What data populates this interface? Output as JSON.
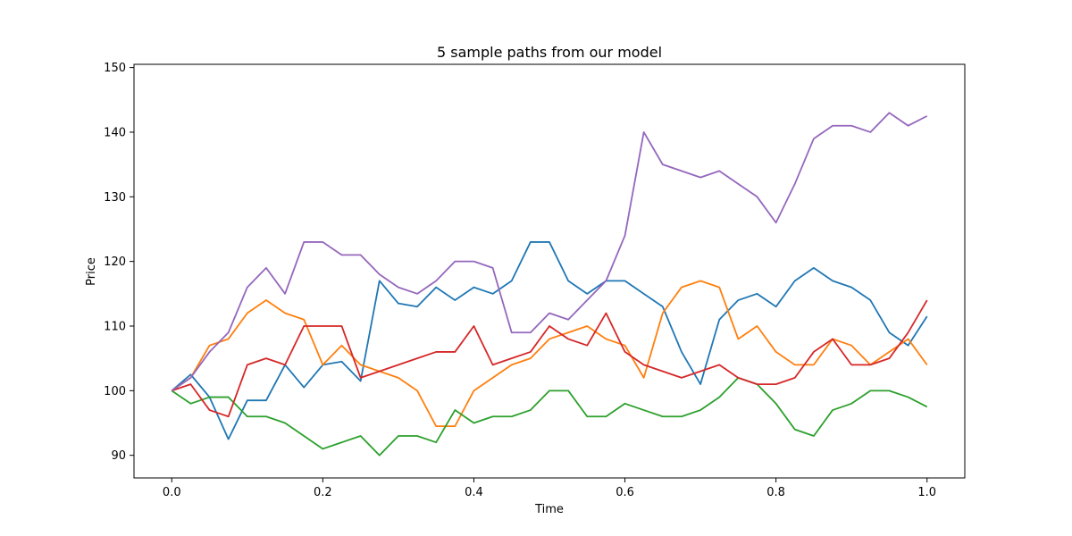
{
  "chart_data": {
    "type": "line",
    "title": "5 sample paths from our model",
    "xlabel": "Time",
    "ylabel": "Price",
    "xlim": [
      -0.05,
      1.05
    ],
    "ylim": [
      86.5,
      150.5
    ],
    "xticks": [
      0.0,
      0.2,
      0.4,
      0.6,
      0.8,
      1.0
    ],
    "xtick_labels": [
      "0.0",
      "0.2",
      "0.4",
      "0.6",
      "0.8",
      "1.0"
    ],
    "yticks": [
      90,
      100,
      110,
      120,
      130,
      140,
      150
    ],
    "ytick_labels": [
      "90",
      "100",
      "110",
      "120",
      "130",
      "140",
      "150"
    ],
    "grid": false,
    "x": [
      0.0,
      0.025,
      0.05,
      0.075,
      0.1,
      0.125,
      0.15,
      0.175,
      0.2,
      0.225,
      0.25,
      0.275,
      0.3,
      0.325,
      0.35,
      0.375,
      0.4,
      0.425,
      0.45,
      0.475,
      0.5,
      0.525,
      0.55,
      0.575,
      0.6,
      0.625,
      0.65,
      0.675,
      0.7,
      0.725,
      0.75,
      0.775,
      0.8,
      0.825,
      0.85,
      0.875,
      0.9,
      0.925,
      0.95,
      0.975,
      1.0
    ],
    "series": [
      {
        "color": "#1f77b4",
        "values": [
          100,
          102.5,
          99,
          92.5,
          98.5,
          98.5,
          104,
          100.5,
          104,
          104.5,
          101.5,
          117,
          113.5,
          113,
          116,
          114,
          116,
          115,
          117,
          123,
          123,
          117,
          115,
          117,
          117,
          115,
          113,
          106,
          101,
          111,
          114,
          115,
          113,
          117,
          119,
          117,
          116,
          114,
          109,
          107,
          111.5
        ]
      },
      {
        "color": "#ff7f0e",
        "values": [
          100,
          102,
          107,
          108,
          112,
          114,
          112,
          111,
          104,
          107,
          104,
          103,
          102,
          100,
          94.5,
          94.5,
          100,
          102,
          104,
          105,
          108,
          109,
          110,
          108,
          107,
          102,
          112,
          116,
          117,
          116,
          108,
          110,
          106,
          104,
          104,
          108,
          107,
          104,
          106,
          108,
          104
        ]
      },
      {
        "color": "#2ca02c",
        "values": [
          100,
          98,
          99,
          99,
          96,
          96,
          95,
          93,
          91,
          92,
          93,
          90,
          93,
          93,
          92,
          97,
          95,
          96,
          96,
          97,
          100,
          100,
          96,
          96,
          98,
          97,
          96,
          96,
          97,
          99,
          102,
          101,
          98,
          94,
          93,
          97,
          98,
          100,
          100,
          99,
          97.5
        ]
      },
      {
        "color": "#d62728",
        "values": [
          100,
          101,
          97,
          96,
          104,
          105,
          104,
          110,
          110,
          110,
          102,
          103,
          104,
          105,
          106,
          106,
          110,
          104,
          105,
          106,
          110,
          108,
          107,
          112,
          106,
          104,
          103,
          102,
          103,
          104,
          102,
          101,
          101,
          102,
          106,
          108,
          104,
          104,
          105,
          109,
          114
        ]
      },
      {
        "color": "#9467bd",
        "values": [
          100,
          102,
          106,
          109,
          116,
          119,
          115,
          123,
          123,
          121,
          121,
          118,
          116,
          115,
          117,
          120,
          120,
          119,
          109,
          109,
          112,
          111,
          114,
          117,
          124,
          140,
          135,
          134,
          133,
          134,
          132,
          130,
          126,
          132,
          139,
          141,
          141,
          140,
          143,
          141,
          142.5
        ]
      }
    ]
  }
}
